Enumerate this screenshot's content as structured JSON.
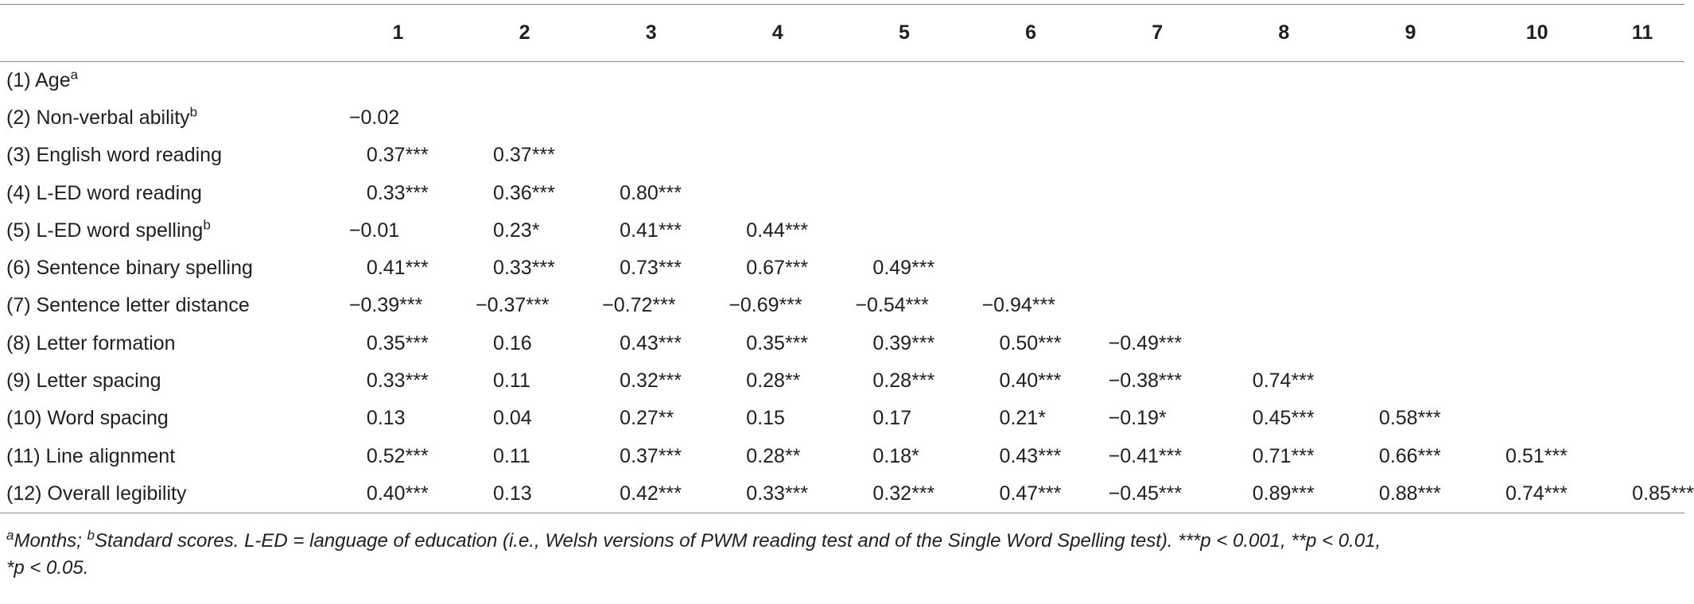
{
  "table": {
    "column_headers": [
      "1",
      "2",
      "3",
      "4",
      "5",
      "6",
      "7",
      "8",
      "9",
      "10",
      "11"
    ],
    "rows": [
      {
        "label": "(1) Age",
        "sup": "a",
        "values": []
      },
      {
        "label": "(2) Non-verbal ability",
        "sup": "b",
        "values": [
          "−0.02"
        ]
      },
      {
        "label": "(3) English word reading",
        "sup": "",
        "values": [
          "0.37***",
          "0.37***"
        ]
      },
      {
        "label": "(4) L-ED word reading",
        "sup": "",
        "values": [
          "0.33***",
          "0.36***",
          "0.80***"
        ]
      },
      {
        "label": "(5) L-ED word spelling",
        "sup": "b",
        "values": [
          "−0.01",
          "0.23*",
          "0.41***",
          "0.44***"
        ]
      },
      {
        "label": "(6) Sentence binary spelling",
        "sup": "",
        "values": [
          "0.41***",
          "0.33***",
          "0.73***",
          "0.67***",
          "0.49***"
        ]
      },
      {
        "label": "(7) Sentence letter distance",
        "sup": "",
        "values": [
          "−0.39***",
          "−0.37***",
          "−0.72***",
          "−0.69***",
          "−0.54***",
          "−0.94***"
        ]
      },
      {
        "label": "(8) Letter formation",
        "sup": "",
        "values": [
          "0.35***",
          "0.16",
          "0.43***",
          "0.35***",
          "0.39***",
          "0.50***",
          "−0.49***"
        ]
      },
      {
        "label": "(9) Letter spacing",
        "sup": "",
        "values": [
          "0.33***",
          "0.11",
          "0.32***",
          "0.28**",
          "0.28***",
          "0.40***",
          "−0.38***",
          "0.74***"
        ]
      },
      {
        "label": "(10) Word spacing",
        "sup": "",
        "values": [
          "0.13",
          "0.04",
          "0.27**",
          "0.15",
          "0.17",
          "0.21*",
          "−0.19*",
          "0.45***",
          "0.58***"
        ]
      },
      {
        "label": "(11) Line alignment",
        "sup": "",
        "values": [
          "0.52***",
          "0.11",
          "0.37***",
          "0.28**",
          "0.18*",
          "0.43***",
          "−0.41***",
          "0.71***",
          "0.66***",
          "0.51***"
        ]
      },
      {
        "label": "(12) Overall legibility",
        "sup": "",
        "values": [
          "0.40***",
          "0.13",
          "0.42***",
          "0.33***",
          "0.32***",
          "0.47***",
          "−0.45***",
          "0.89***",
          "0.88***",
          "0.74***",
          "0.85***"
        ]
      }
    ]
  },
  "footnote": {
    "sup_a": "a",
    "text_a": "Months; ",
    "sup_b": "b",
    "line1_rest": "Standard scores. L-ED = language of education (i.e., Welsh versions of PWM reading test and of the Single Word Spelling test). ***p < 0.001, **p < 0.01,",
    "line2": "*p < 0.05."
  }
}
